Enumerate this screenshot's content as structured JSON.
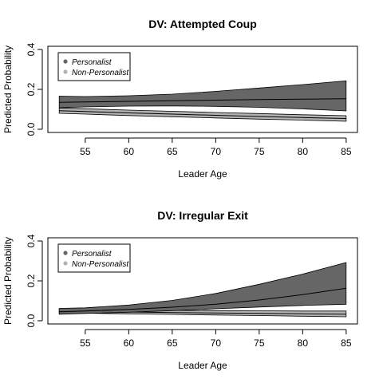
{
  "chart_data": [
    {
      "type": "area",
      "title": "DV: Attempted Coup",
      "xlabel": "Leader Age",
      "ylabel": "Predicted Probability",
      "xlim": [
        50.7,
        86.3
      ],
      "ylim": [
        -0.016,
        0.416
      ],
      "xticks": [
        55,
        60,
        65,
        70,
        75,
        80,
        85
      ],
      "yticks": [
        0.0,
        0.2,
        0.4
      ],
      "ytick_labels": [
        "0.0",
        "0.2",
        "0.4"
      ],
      "legend": {
        "position": "top-left",
        "entries": [
          {
            "label": "Personalist",
            "color": "#666666"
          },
          {
            "label": "Non-Personalist",
            "color": "#b3b3b3"
          }
        ]
      },
      "x": [
        52,
        85
      ],
      "series": [
        {
          "name": "Non-Personalist",
          "color": "#b3b3b3",
          "x": [
            52,
            55,
            60,
            65,
            70,
            75,
            80,
            85
          ],
          "fit": [
            0.093,
            0.089,
            0.082,
            0.076,
            0.07,
            0.064,
            0.059,
            0.054
          ],
          "lower": [
            0.08,
            0.076,
            0.069,
            0.063,
            0.057,
            0.051,
            0.046,
            0.04
          ],
          "upper": [
            0.107,
            0.103,
            0.096,
            0.09,
            0.084,
            0.079,
            0.073,
            0.068
          ]
        },
        {
          "name": "Personalist",
          "color": "#666666",
          "x": [
            52,
            55,
            60,
            65,
            70,
            75,
            80,
            85
          ],
          "fit": [
            0.135,
            0.137,
            0.14,
            0.143,
            0.146,
            0.149,
            0.151,
            0.153
          ],
          "lower": [
            0.108,
            0.112,
            0.116,
            0.117,
            0.115,
            0.11,
            0.102,
            0.092
          ],
          "upper": [
            0.166,
            0.164,
            0.168,
            0.176,
            0.19,
            0.207,
            0.224,
            0.243
          ]
        }
      ]
    },
    {
      "type": "area",
      "title": "DV: Irregular Exit",
      "xlabel": "Leader Age",
      "ylabel": "Predicted Probability",
      "xlim": [
        50.7,
        86.3
      ],
      "ylim": [
        -0.016,
        0.416
      ],
      "xticks": [
        55,
        60,
        65,
        70,
        75,
        80,
        85
      ],
      "yticks": [
        0.0,
        0.2,
        0.4
      ],
      "ytick_labels": [
        "0.0",
        "0.2",
        "0.4"
      ],
      "legend": {
        "position": "top-left",
        "entries": [
          {
            "label": "Personalist",
            "color": "#666666"
          },
          {
            "label": "Non-Personalist",
            "color": "#b3b3b3"
          }
        ]
      },
      "x": [
        52,
        85
      ],
      "series": [
        {
          "name": "Non-Personalist",
          "color": "#b3b3b3",
          "x": [
            52,
            55,
            60,
            65,
            70,
            75,
            80,
            85
          ],
          "fit": [
            0.048,
            0.046,
            0.044,
            0.041,
            0.039,
            0.037,
            0.035,
            0.033
          ],
          "lower": [
            0.039,
            0.038,
            0.035,
            0.032,
            0.029,
            0.026,
            0.023,
            0.02
          ],
          "upper": [
            0.058,
            0.056,
            0.054,
            0.052,
            0.051,
            0.05,
            0.049,
            0.049
          ]
        },
        {
          "name": "Personalist",
          "color": "#666666",
          "x": [
            52,
            55,
            60,
            65,
            70,
            75,
            80,
            85
          ],
          "fit": [
            0.045,
            0.049,
            0.057,
            0.068,
            0.083,
            0.104,
            0.131,
            0.163
          ],
          "lower": [
            0.033,
            0.037,
            0.043,
            0.051,
            0.06,
            0.069,
            0.077,
            0.083
          ],
          "upper": [
            0.062,
            0.065,
            0.079,
            0.102,
            0.137,
            0.183,
            0.234,
            0.292
          ]
        }
      ]
    }
  ]
}
